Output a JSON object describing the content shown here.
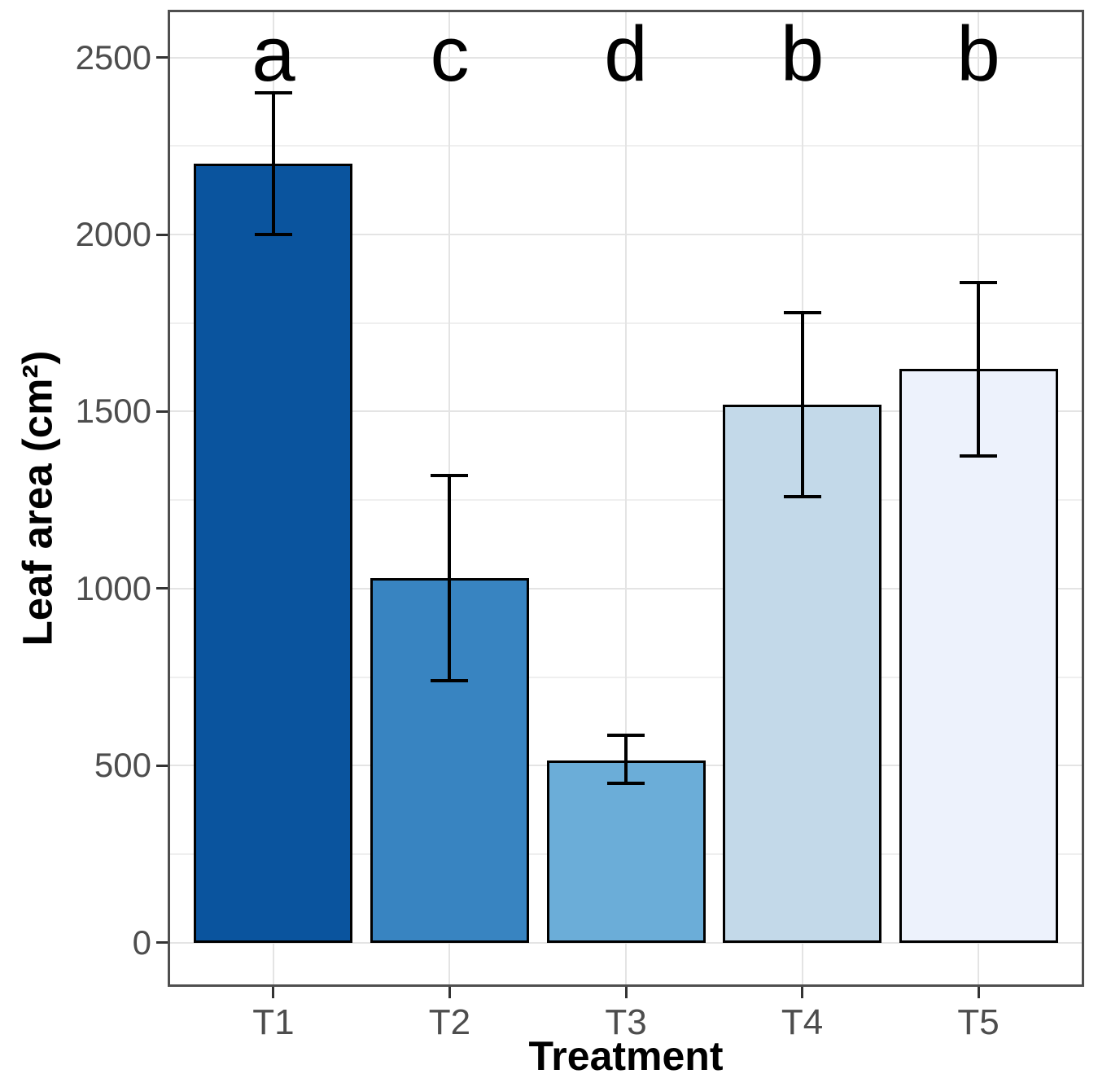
{
  "chart_data": {
    "type": "bar",
    "title": "",
    "xlabel": "Treatment",
    "ylabel": "Leaf area (cm²)",
    "categories": [
      "T1",
      "T2",
      "T3",
      "T4",
      "T5"
    ],
    "series": [
      {
        "name": "Leaf area",
        "values": [
          2200,
          1030,
          515,
          1520,
          1620
        ],
        "error_low": [
          2000,
          740,
          450,
          1260,
          1375
        ],
        "error_high": [
          2400,
          1320,
          585,
          1780,
          1865
        ]
      }
    ],
    "sig_letters": [
      "a",
      "c",
      "d",
      "b",
      "b"
    ],
    "bar_colors": [
      "#0a549e",
      "#3884c1",
      "#6badd8",
      "#c3d9e9",
      "#edf2fc"
    ],
    "bar_border_color": "#000000",
    "error_bar_color": "#000000",
    "y_ticks": [
      0,
      500,
      1000,
      1500,
      2000,
      2500
    ],
    "y_tick_labels": [
      "0",
      "500",
      "1000",
      "1500",
      "2000",
      "2500"
    ],
    "y_minor_step": 250,
    "ylim": [
      0,
      2500
    ],
    "ylim_display": [
      -125,
      2635
    ],
    "grid": true,
    "legend": "none",
    "gridline_major_color": "#e4e4e4",
    "gridline_minor_color": "#efefef",
    "panel_border_color": "#4f4f4f",
    "tick_color": "#333333",
    "tick_label_color": "#4d4d4d",
    "axis_title_color": "#000000",
    "sig_letter_color": "#000000",
    "bar_width_fraction": 0.9
  }
}
